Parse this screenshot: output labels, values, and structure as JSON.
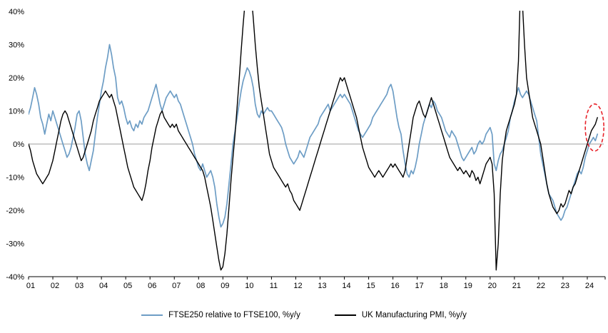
{
  "chart_data": {
    "type": "line",
    "x_start_year": 2001,
    "x_end": 2024.5,
    "points_per_year": 12,
    "ylim": [
      -40,
      40
    ],
    "grid": "zero-line-only",
    "zero_line_color": "#9c9c9c",
    "y_ticks": [
      40,
      30,
      20,
      10,
      0,
      -10,
      -20,
      -30,
      -40
    ],
    "y_tick_labels": [
      "40%",
      "30%",
      "20%",
      "10%",
      "0%",
      "-10%",
      "-20%",
      "-30%",
      "-40%"
    ],
    "x_tick_labels": [
      "01",
      "02",
      "03",
      "04",
      "05",
      "06",
      "07",
      "08",
      "09",
      "10",
      "11",
      "12",
      "13",
      "14",
      "15",
      "16",
      "17",
      "18",
      "19",
      "20",
      "21",
      "22",
      "23",
      "24"
    ],
    "legend_position": "bottom-center",
    "series": [
      {
        "name": "FTSE250 relative to FTSE100, %y/y",
        "color": "#6d9dc5",
        "values": [
          9,
          11,
          14,
          17,
          15,
          12,
          8,
          6,
          3,
          6,
          9,
          7,
          10,
          8,
          6,
          4,
          2,
          0,
          -2,
          -4,
          -3,
          -1,
          2,
          5,
          9,
          10,
          7,
          2,
          -3,
          -6,
          -8,
          -5,
          -2,
          3,
          8,
          12,
          16,
          19,
          23,
          26,
          30,
          27,
          23,
          20,
          14,
          12,
          13,
          11,
          8,
          6,
          7,
          5,
          4,
          6,
          5,
          7,
          6,
          8,
          9,
          10,
          12,
          14,
          16,
          18,
          15,
          12,
          10,
          12,
          14,
          15,
          16,
          15,
          14,
          15,
          13,
          12,
          10,
          8,
          6,
          4,
          2,
          0,
          -3,
          -5,
          -7,
          -8,
          -6,
          -8,
          -10,
          -9,
          -8,
          -10,
          -13,
          -18,
          -22,
          -25,
          -24,
          -22,
          -18,
          -12,
          -6,
          0,
          4,
          8,
          12,
          16,
          19,
          21,
          23,
          22,
          20,
          17,
          12,
          9,
          8,
          10,
          9,
          10,
          11,
          10,
          10,
          9,
          8,
          7,
          6,
          5,
          3,
          0,
          -2,
          -4,
          -5,
          -6,
          -5,
          -4,
          -2,
          -3,
          -4,
          -2,
          0,
          2,
          3,
          4,
          5,
          6,
          8,
          9,
          10,
          11,
          12,
          10,
          11,
          12,
          13,
          14,
          15,
          14,
          15,
          14,
          13,
          12,
          10,
          8,
          6,
          4,
          3,
          2,
          3,
          4,
          5,
          6,
          8,
          9,
          10,
          11,
          12,
          13,
          14,
          15,
          17,
          18,
          16,
          12,
          8,
          5,
          3,
          -2,
          -6,
          -9,
          -10,
          -8,
          -9,
          -7,
          -4,
          0,
          3,
          6,
          8,
          10,
          12,
          11,
          13,
          12,
          10,
          9,
          8,
          6,
          4,
          3,
          2,
          4,
          3,
          2,
          0,
          -2,
          -4,
          -5,
          -4,
          -3,
          -2,
          -1,
          -3,
          -2,
          0,
          1,
          0,
          1,
          3,
          4,
          5,
          3,
          -6,
          -8,
          -5,
          -3,
          -2,
          0,
          2,
          4,
          8,
          10,
          13,
          15,
          17,
          15,
          14,
          15,
          16,
          15,
          13,
          11,
          9,
          7,
          2,
          -3,
          -6,
          -9,
          -12,
          -15,
          -16,
          -17,
          -19,
          -21,
          -22,
          -23,
          -22,
          -20,
          -19,
          -17,
          -15,
          -13,
          -11,
          -9,
          -8,
          -9,
          -7,
          -4,
          -2,
          0,
          1,
          2,
          1,
          3
        ]
      },
      {
        "name": "UK Manufacturing PMI, %y/y",
        "color": "#000000",
        "values": [
          0,
          -2,
          -5,
          -7,
          -9,
          -10,
          -11,
          -12,
          -11,
          -10,
          -9,
          -7,
          -5,
          -2,
          1,
          4,
          7,
          9,
          10,
          9,
          7,
          5,
          3,
          1,
          -1,
          -3,
          -5,
          -4,
          -2,
          0,
          2,
          4,
          7,
          9,
          11,
          13,
          14,
          15,
          16,
          15,
          14,
          15,
          13,
          11,
          8,
          5,
          2,
          -1,
          -4,
          -7,
          -9,
          -11,
          -13,
          -14,
          -15,
          -16,
          -17,
          -15,
          -12,
          -8,
          -5,
          -1,
          2,
          5,
          7,
          9,
          10,
          8,
          7,
          6,
          5,
          6,
          5,
          6,
          4,
          3,
          2,
          1,
          0,
          -1,
          -2,
          -3,
          -4,
          -5,
          -6,
          -7,
          -8,
          -10,
          -13,
          -16,
          -19,
          -23,
          -27,
          -31,
          -35,
          -38,
          -37,
          -33,
          -27,
          -19,
          -11,
          -4,
          3,
          11,
          19,
          28,
          36,
          43,
          47,
          49,
          45,
          38,
          30,
          23,
          17,
          13,
          9,
          5,
          1,
          -3,
          -5,
          -7,
          -8,
          -9,
          -10,
          -11,
          -12,
          -13,
          -12,
          -14,
          -15,
          -17,
          -18,
          -19,
          -20,
          -18,
          -16,
          -14,
          -12,
          -10,
          -8,
          -6,
          -4,
          -2,
          0,
          2,
          4,
          6,
          8,
          10,
          12,
          14,
          16,
          18,
          20,
          19,
          20,
          18,
          16,
          14,
          12,
          10,
          8,
          5,
          2,
          -1,
          -3,
          -5,
          -7,
          -8,
          -9,
          -10,
          -9,
          -8,
          -9,
          -10,
          -9,
          -8,
          -7,
          -6,
          -7,
          -6,
          -7,
          -8,
          -9,
          -10,
          -8,
          -4,
          0,
          4,
          8,
          10,
          12,
          13,
          11,
          9,
          8,
          10,
          12,
          14,
          12,
          10,
          8,
          6,
          4,
          2,
          0,
          -2,
          -4,
          -5,
          -6,
          -7,
          -8,
          -7,
          -8,
          -9,
          -8,
          -9,
          -10,
          -8,
          -9,
          -11,
          -10,
          -12,
          -10,
          -8,
          -6,
          -5,
          -4,
          -6,
          -15,
          -38,
          -30,
          -15,
          -5,
          0,
          4,
          6,
          8,
          10,
          12,
          15,
          25,
          48,
          42,
          30,
          20,
          16,
          12,
          8,
          6,
          4,
          2,
          0,
          -4,
          -8,
          -12,
          -15,
          -17,
          -19,
          -20,
          -21,
          -20,
          -18,
          -19,
          -18,
          -16,
          -14,
          -15,
          -13,
          -12,
          -10,
          -8,
          -6,
          -4,
          -2,
          0,
          2,
          4,
          5,
          6,
          8
        ]
      }
    ],
    "annotation": {
      "type": "dashed-ellipse",
      "color": "#e8232a",
      "x_year": 2024.3,
      "y_center": 5,
      "y_span": 14
    }
  },
  "legend": {
    "items": [
      {
        "label": "FTSE250 relative to FTSE100, %y/y"
      },
      {
        "label": "UK Manufacturing PMI, %y/y"
      }
    ]
  }
}
